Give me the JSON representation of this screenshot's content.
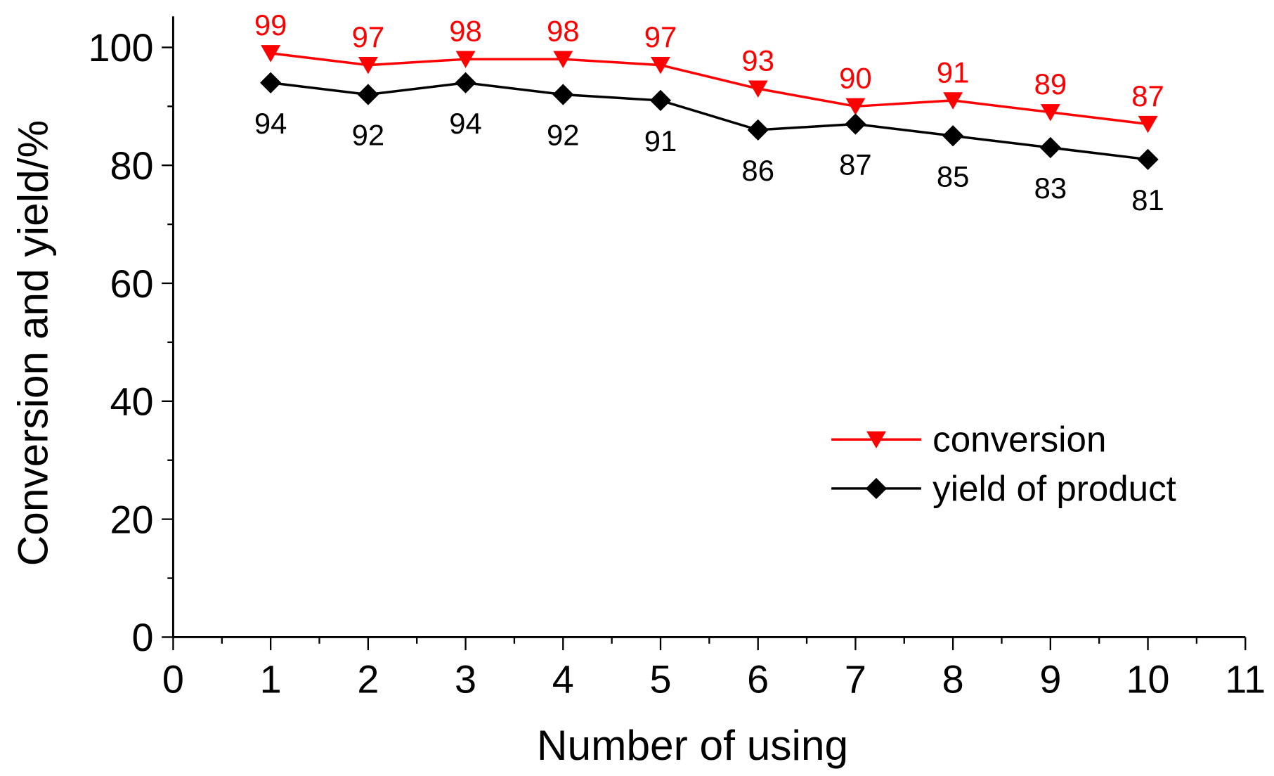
{
  "chart_data": {
    "type": "line",
    "title": "",
    "xlabel": "Number of using",
    "ylabel": "Conversion and yield/%",
    "xlim": [
      0,
      11
    ],
    "ylim": [
      0,
      100
    ],
    "xticks": [
      "0",
      "1",
      "2",
      "3",
      "4",
      "5",
      "6",
      "7",
      "8",
      "9",
      "10",
      "11"
    ],
    "yticks": [
      "0",
      "20",
      "40",
      "60",
      "80",
      "100"
    ],
    "grid": false,
    "legend_position": "center-right",
    "x": [
      1,
      2,
      3,
      4,
      5,
      6,
      7,
      8,
      9,
      10
    ],
    "series": [
      {
        "name": "conversion",
        "color": "#ff0000",
        "marker": "triangle-down",
        "values": [
          99,
          97,
          98,
          98,
          97,
          93,
          90,
          91,
          89,
          87
        ],
        "labels": [
          "99",
          "97",
          "98",
          "98",
          "97",
          "93",
          "90",
          "91",
          "89",
          "87"
        ]
      },
      {
        "name": "yield of product",
        "color": "#000000",
        "marker": "diamond",
        "values": [
          94,
          92,
          94,
          92,
          91,
          86,
          87,
          85,
          83,
          81
        ],
        "labels": [
          "94",
          "92",
          "94",
          "92",
          "91",
          "86",
          "87",
          "85",
          "83",
          "81"
        ]
      }
    ]
  }
}
